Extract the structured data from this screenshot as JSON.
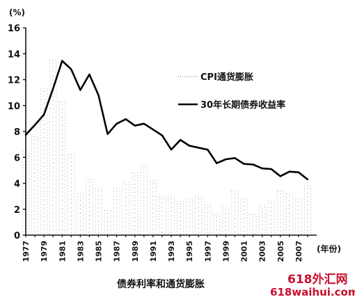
{
  "chart_data": {
    "type": "line",
    "yunit": "(%)",
    "xunit": "(年份)",
    "caption": "债券利率和通货膨胀",
    "ylim": [
      0,
      16
    ],
    "yticks": [
      0,
      2,
      4,
      6,
      8,
      10,
      12,
      14,
      16
    ],
    "xlim": [
      1977,
      2009
    ],
    "xticks": [
      1977,
      1979,
      1981,
      1983,
      1985,
      1987,
      1989,
      1991,
      1993,
      1995,
      1997,
      1999,
      2001,
      2003,
      2005,
      2007
    ],
    "legend_position": "top-right",
    "grid": false,
    "series": [
      {
        "name": "CPI通货膨胀",
        "style": "faint-bars",
        "color": "#9a9a9a",
        "x": [
          1977,
          1978,
          1979,
          1980,
          1981,
          1982,
          1983,
          1984,
          1985,
          1986,
          1987,
          1988,
          1989,
          1990,
          1991,
          1992,
          1993,
          1994,
          1995,
          1996,
          1997,
          1998,
          1999,
          2000,
          2001,
          2002,
          2003,
          2004,
          2005,
          2006,
          2007,
          2008
        ],
        "values": [
          6.5,
          7.6,
          11.3,
          13.5,
          10.3,
          6.2,
          3.2,
          4.3,
          3.6,
          1.9,
          3.6,
          4.1,
          4.8,
          5.4,
          4.2,
          3.0,
          3.0,
          2.6,
          2.8,
          3.0,
          2.3,
          1.6,
          2.2,
          3.4,
          2.8,
          1.6,
          2.3,
          2.7,
          3.4,
          3.2,
          2.8,
          3.8
        ]
      },
      {
        "name": "30年长期债券收益率",
        "style": "line",
        "color": "#000000",
        "x": [
          1977,
          1978,
          1979,
          1980,
          1981,
          1982,
          1983,
          1984,
          1985,
          1986,
          1987,
          1988,
          1989,
          1990,
          1991,
          1992,
          1993,
          1994,
          1995,
          1996,
          1997,
          1998,
          1999,
          2000,
          2001,
          2002,
          2003,
          2004,
          2005,
          2006,
          2007,
          2008
        ],
        "values": [
          7.75,
          8.5,
          9.3,
          11.3,
          13.45,
          12.8,
          11.2,
          12.4,
          10.8,
          7.8,
          8.6,
          8.95,
          8.45,
          8.6,
          8.15,
          7.7,
          6.6,
          7.35,
          6.9,
          6.75,
          6.6,
          5.55,
          5.85,
          5.95,
          5.5,
          5.45,
          5.15,
          5.1,
          4.55,
          4.9,
          4.85,
          4.3
        ]
      }
    ]
  },
  "watermark": {
    "line1": "618外汇网",
    "line2": "618waihui.com"
  }
}
